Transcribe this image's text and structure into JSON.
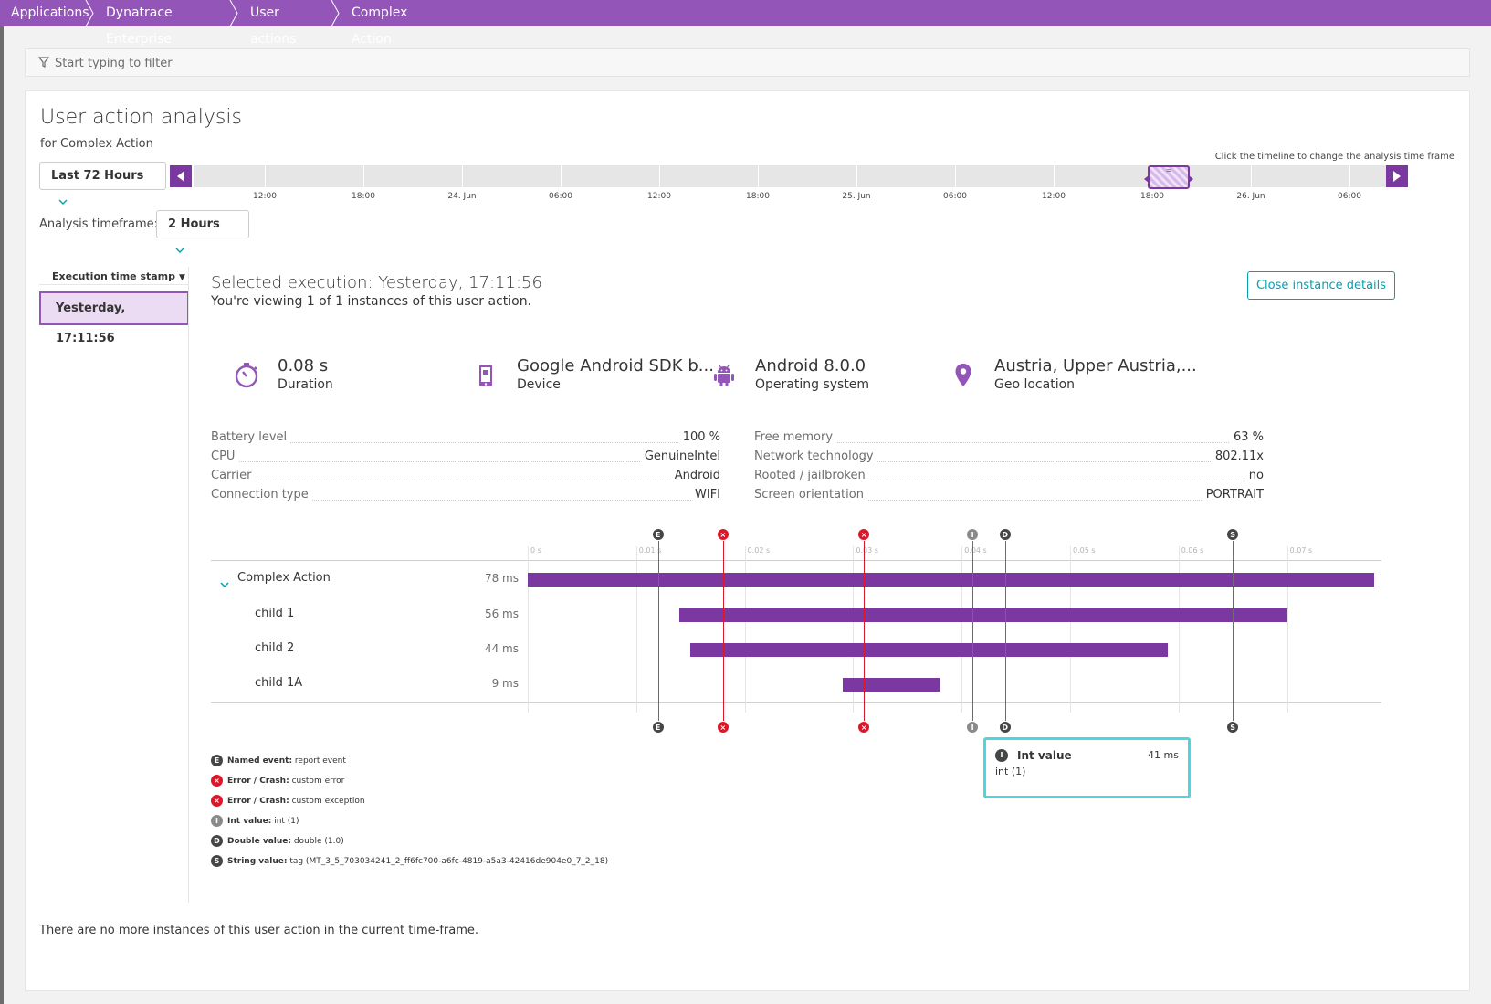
{
  "breadcrumb": [
    "Applications",
    "Dynatrace Enterprise",
    "User actions",
    "Complex Action"
  ],
  "filter": {
    "placeholder": "Start typing to filter"
  },
  "page": {
    "title": "User action analysis",
    "subtitle": "for Complex Action"
  },
  "timeframe": {
    "range": "Last 72 Hours",
    "hint": "Click the timeline to change the analysis time frame",
    "ticks": [
      "12:00",
      "18:00",
      "24. Jun",
      "06:00",
      "12:00",
      "18:00",
      "25. Jun",
      "06:00",
      "12:00",
      "18:00",
      "26. Jun",
      "06:00"
    ],
    "analysis_label": "Analysis timeframe:",
    "analysis_value": "2 Hours",
    "handle_label": "="
  },
  "executions": {
    "header": "Execution time stamp",
    "sort_icon": "triangle-down",
    "items": [
      "Yesterday, 17:11:56"
    ]
  },
  "detail": {
    "title": "Selected execution: Yesterday, 17:11:56",
    "subtitle": "You're viewing 1 of 1 instances of this user action.",
    "close_button": "Close instance details",
    "stats": [
      {
        "icon": "stopwatch-icon",
        "value": "0.08 s",
        "label": "Duration"
      },
      {
        "icon": "mobile-device-icon",
        "value": "Google Android SDK b...",
        "label": "Device"
      },
      {
        "icon": "android-icon",
        "value": "Android 8.0.0",
        "label": "Operating system"
      },
      {
        "icon": "location-pin-icon",
        "value": "Austria, Upper Austria,...",
        "label": "Geo location"
      }
    ],
    "properties_left": [
      {
        "key": "Battery level",
        "value": "100 %"
      },
      {
        "key": "CPU",
        "value": "GenuineIntel"
      },
      {
        "key": "Carrier",
        "value": "Android"
      },
      {
        "key": "Connection type",
        "value": "WIFI"
      }
    ],
    "properties_right": [
      {
        "key": "Free memory",
        "value": "63 %"
      },
      {
        "key": "Network technology",
        "value": "802.11x"
      },
      {
        "key": "Rooted / jailbroken",
        "value": "no"
      },
      {
        "key": "Screen orientation",
        "value": "PORTRAIT"
      }
    ]
  },
  "waterfall": {
    "axis_ticks": [
      "0 s",
      "0.01 s",
      "0.02 s",
      "0.03 s",
      "0.04 s",
      "0.05 s",
      "0.06 s",
      "0.07 s"
    ],
    "rows": [
      {
        "name": "Complex Action",
        "duration": "78 ms",
        "start_ms": 0,
        "length_ms": 78
      },
      {
        "name": "child 1",
        "duration": "56 ms",
        "start_ms": 14,
        "length_ms": 56
      },
      {
        "name": "child 2",
        "duration": "44 ms",
        "start_ms": 15,
        "length_ms": 44
      },
      {
        "name": "child 1A",
        "duration": "9 ms",
        "start_ms": 29,
        "length_ms": 9
      }
    ],
    "events": [
      {
        "letter": "E",
        "kind": "dark",
        "time_ms": 12
      },
      {
        "letter": "×",
        "kind": "red",
        "time_ms": 18
      },
      {
        "letter": "×",
        "kind": "red",
        "time_ms": 31
      },
      {
        "letter": "I",
        "kind": "grey",
        "time_ms": 41
      },
      {
        "letter": "D",
        "kind": "dark",
        "time_ms": 44
      },
      {
        "letter": "S",
        "kind": "dark",
        "time_ms": 65
      }
    ],
    "colors": {
      "bar": "#7c38a1",
      "error": "#dc172a",
      "accent": "#9355b7",
      "teal": "#00a1b2"
    }
  },
  "legend": [
    {
      "letter": "E",
      "kind": "dark",
      "type": "Named event:",
      "text": "report event"
    },
    {
      "letter": "×",
      "kind": "red",
      "type": "Error / Crash:",
      "text": "custom error"
    },
    {
      "letter": "×",
      "kind": "red",
      "type": "Error / Crash:",
      "text": "custom exception"
    },
    {
      "letter": "I",
      "kind": "grey",
      "type": "Int value:",
      "text": "int (1)"
    },
    {
      "letter": "D",
      "kind": "dark",
      "type": "Double value:",
      "text": "double (1.0)"
    },
    {
      "letter": "S",
      "kind": "dark",
      "type": "String value:",
      "text": "tag (MT_3_5_703034241_2_ff6fc700-a6fc-4819-a5a3-42416de904e0_7_2_18)"
    }
  ],
  "tooltip": {
    "letter": "I",
    "title": "Int value",
    "value": "41 ms",
    "desc": "int (1)"
  },
  "footer": "There are no more instances of this user action in the current time-frame."
}
